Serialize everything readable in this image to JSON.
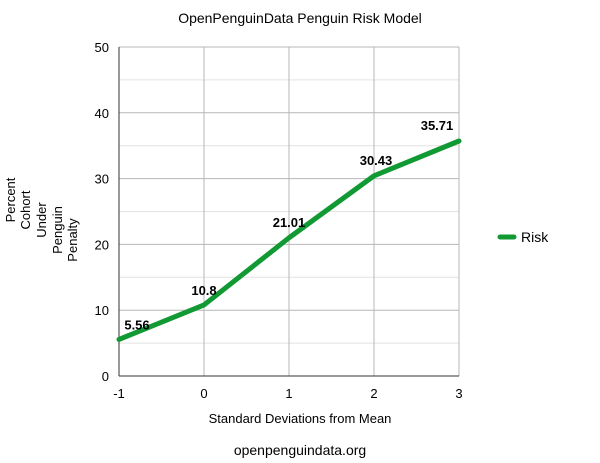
{
  "chart_data": {
    "type": "line",
    "title": "OpenPenguinData Penguin Risk Model",
    "xlabel": "Standard Deviations from Mean",
    "ylabel": [
      "Percent",
      "Cohort",
      "Under",
      "Penguin",
      "Penalty"
    ],
    "footer": "openpenguindata.org",
    "xlim": [
      -1,
      3
    ],
    "ylim": [
      0,
      50
    ],
    "x_ticks": [
      "-1",
      "0",
      "1",
      "2",
      "3"
    ],
    "y_ticks": [
      "0",
      "10",
      "20",
      "30",
      "40",
      "50"
    ],
    "grid": true,
    "legend_position": "right",
    "series": [
      {
        "name": "Risk",
        "color": "#119933",
        "x": [
          -1,
          0,
          1,
          2,
          3
        ],
        "values": [
          5.56,
          10.8,
          21.01,
          30.43,
          35.71
        ],
        "labels": [
          "5.56",
          "10.8",
          "21.01",
          "30.43",
          "35.71"
        ]
      }
    ]
  }
}
